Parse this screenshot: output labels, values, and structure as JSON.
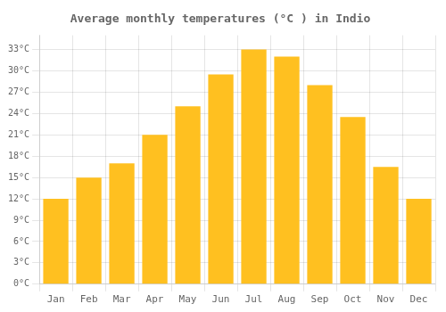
{
  "chart_data": {
    "type": "bar",
    "title": "Average monthly temperatures (°C ) in Indio",
    "categories": [
      "Jan",
      "Feb",
      "Mar",
      "Apr",
      "May",
      "Jun",
      "Jul",
      "Aug",
      "Sep",
      "Oct",
      "Nov",
      "Dec"
    ],
    "values": [
      12,
      15,
      17,
      21,
      25,
      29.5,
      33,
      32,
      28,
      23.5,
      16.5,
      12
    ],
    "color": "#FFC020",
    "ylim": [
      0,
      35
    ],
    "yticks": [
      {
        "value": 0,
        "label": "0°C"
      },
      {
        "value": 3,
        "label": "3°C"
      },
      {
        "value": 6,
        "label": "6°C"
      },
      {
        "value": 9,
        "label": "9°C"
      },
      {
        "value": 12,
        "label": "12°C"
      },
      {
        "value": 15,
        "label": "15°C"
      },
      {
        "value": 18,
        "label": "18°C"
      },
      {
        "value": 21,
        "label": "21°C"
      },
      {
        "value": 24,
        "label": "24°C"
      },
      {
        "value": 27,
        "label": "27°C"
      },
      {
        "value": 30,
        "label": "30°C"
      },
      {
        "value": 33,
        "label": "33°C"
      }
    ],
    "grid": true
  }
}
